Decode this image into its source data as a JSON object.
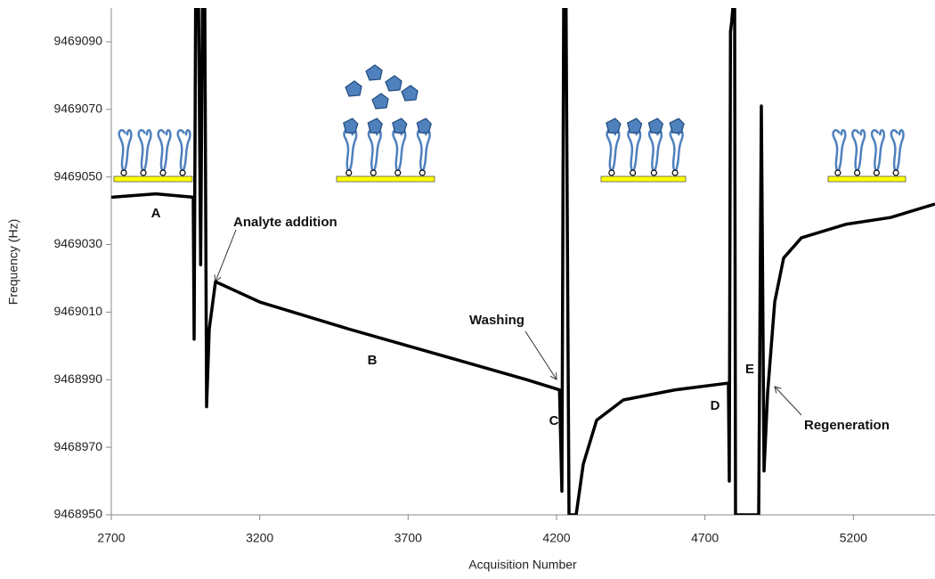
{
  "chart_data": {
    "type": "line",
    "x_label": "Acquisition Number",
    "y_label": "Frequency (Hz)",
    "x": [
      2700,
      2850,
      2976,
      2979,
      2984,
      2994,
      3001,
      3007,
      3015,
      3021,
      3030,
      3051,
      3200,
      3500,
      3800,
      4100,
      4210,
      4218,
      4224,
      4232,
      4242,
      4266,
      4290,
      4335,
      4425,
      4600,
      4779,
      4782,
      4786,
      4790,
      4794,
      4800,
      4803,
      4881,
      4890,
      4899,
      4911,
      4935,
      4965,
      5025,
      5175,
      5325,
      5475
    ],
    "series": [
      {
        "color": "#000000",
        "values": [
          9469044,
          9469045,
          9469044,
          9469002,
          9469100,
          9469100,
          9469024,
          9469100,
          9469100,
          9468982,
          9469005,
          9469019,
          9469013,
          9469005,
          9468997.5,
          9468990,
          9468987,
          9468957,
          9469100,
          9469100,
          9468950,
          9468950,
          9468965,
          9468978,
          9468984,
          9468987,
          9468989,
          9468960,
          9469093,
          9469096,
          9469100,
          9469100,
          9468950,
          9468950,
          9469071,
          9468963,
          9468986,
          9469013,
          9469026,
          9469032,
          9469036,
          9469038,
          9469042
        ]
      }
    ],
    "xlim": [
      2700,
      5475
    ],
    "ylim": [
      9468950,
      9469100
    ],
    "xticks": [
      2700,
      3200,
      3700,
      4200,
      4700,
      5200
    ],
    "yticks": [
      9468950,
      9468970,
      9468990,
      9469010,
      9469030,
      9469050,
      9469070,
      9469090
    ],
    "annotations": [
      "A",
      "Analyte addition",
      "B",
      "Washing",
      "C",
      "D",
      "E",
      "Regeneration"
    ]
  }
}
